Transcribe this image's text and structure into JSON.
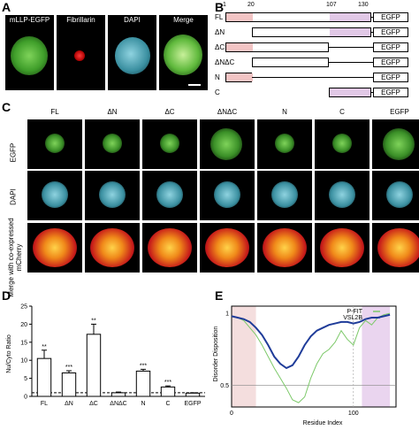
{
  "panels": {
    "A": "A",
    "B": "B",
    "C": "C",
    "D": "D",
    "E": "E"
  },
  "panelA": {
    "labels": [
      "mLLP-EGFP",
      "Fibrillarin",
      "DAPI",
      "Merge"
    ]
  },
  "panelB": {
    "ticks": [
      "1",
      "20",
      "107",
      "130"
    ],
    "egfp": "EGFP",
    "constructs": [
      "FL",
      "ΔN",
      "ΔC",
      "ΔNΔC",
      "N",
      "C"
    ]
  },
  "panelC": {
    "columns": [
      "FL",
      "ΔN",
      "ΔC",
      "ΔNΔC",
      "N",
      "C",
      "EGFP"
    ],
    "rows": [
      "EGFP",
      "DAPI",
      "Merge with co-expressed mCherry"
    ]
  },
  "chart_data": [
    {
      "type": "bar",
      "categories": [
        "FL",
        "ΔN",
        "ΔC",
        "ΔNΔC",
        "N",
        "C",
        "EGFP"
      ],
      "values": [
        10.5,
        6.5,
        17.2,
        1.0,
        7.0,
        2.6,
        0.9
      ],
      "errors": [
        2.3,
        0.6,
        2.8,
        0.2,
        0.5,
        0.3,
        0.1
      ],
      "significance": [
        "**",
        "***",
        "**",
        "",
        "***",
        "***",
        ""
      ],
      "ylabel": "Nu/Cyto Ratio",
      "ylim": [
        0,
        25
      ],
      "yticks": [
        "0",
        "5",
        "10",
        "15",
        "20",
        "25"
      ],
      "reference_line": 1
    },
    {
      "type": "line",
      "xlabel": "Residue Index",
      "ylabel": "Disorder Disposition",
      "xticks": [
        "0",
        "100"
      ],
      "yticks": [
        "1",
        "0.5"
      ],
      "series": [
        {
          "name": "P-FIT",
          "color": "#7dc96a"
        },
        {
          "name": "VSL2B",
          "color": "#1f3c99"
        }
      ]
    }
  ]
}
